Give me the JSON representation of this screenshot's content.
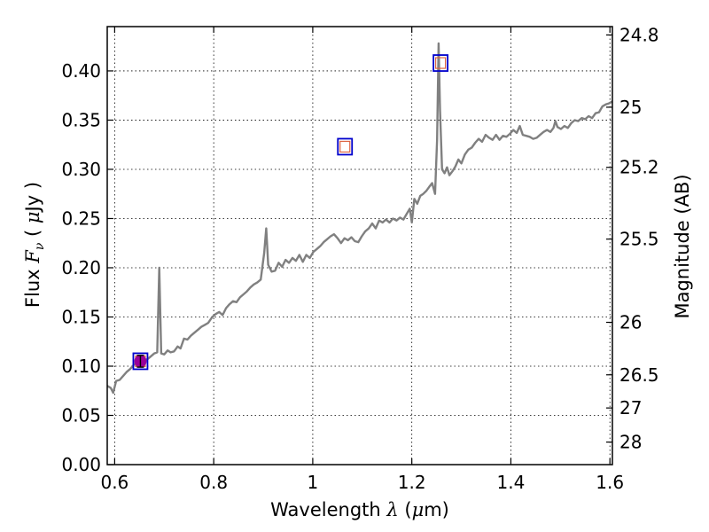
{
  "chart_data": {
    "type": "line",
    "xlabel": "Wavelength  λ (μm)",
    "ylabel": "Flux  F_ν  ( μJy )",
    "ylabel_parts": {
      "prefix": "Flux  ",
      "var": "F",
      "sub": "ν",
      "unit_open": "  ( ",
      "unit_mu": "μ",
      "unit_rest": "Jy )"
    },
    "xlabel_parts": {
      "prefix": "Wavelength  ",
      "var": "λ",
      "unit_open": " (",
      "unit_mu": "μ",
      "unit_rest": "m)"
    },
    "y2label": "Magnitude (AB)",
    "xlim": [
      0.585,
      1.605
    ],
    "ylim": [
      0.0,
      0.445
    ],
    "grid": true,
    "x_ticks": [
      {
        "value": 0.6,
        "label": "0.6"
      },
      {
        "value": 0.8,
        "label": "0.8"
      },
      {
        "value": 1.0,
        "label": "1"
      },
      {
        "value": 1.2,
        "label": "1.2"
      },
      {
        "value": 1.4,
        "label": "1.4"
      },
      {
        "value": 1.6,
        "label": "1.6"
      }
    ],
    "y_ticks": [
      {
        "value": 0.0,
        "label": "0.00"
      },
      {
        "value": 0.05,
        "label": "0.05"
      },
      {
        "value": 0.1,
        "label": "0.10"
      },
      {
        "value": 0.15,
        "label": "0.15"
      },
      {
        "value": 0.2,
        "label": "0.20"
      },
      {
        "value": 0.25,
        "label": "0.25"
      },
      {
        "value": 0.3,
        "label": "0.30"
      },
      {
        "value": 0.35,
        "label": "0.35"
      },
      {
        "value": 0.4,
        "label": "0.40"
      }
    ],
    "magnitude_ticks": [
      {
        "value": 24.8,
        "label": "24.8"
      },
      {
        "value": 25.0,
        "label": "25"
      },
      {
        "value": 25.2,
        "label": "25.2"
      },
      {
        "value": 25.5,
        "label": "25.5"
      },
      {
        "value": 26.0,
        "label": "26"
      },
      {
        "value": 26.5,
        "label": "26.5"
      },
      {
        "value": 27.0,
        "label": "27"
      },
      {
        "value": 28.0,
        "label": "28"
      }
    ],
    "series": [
      {
        "style": "spectrum",
        "color": "#808080",
        "points": [
          [
            0.585,
            0.08
          ],
          [
            0.592,
            0.078
          ],
          [
            0.597,
            0.073
          ],
          [
            0.603,
            0.085
          ],
          [
            0.61,
            0.086
          ],
          [
            0.617,
            0.09
          ],
          [
            0.624,
            0.094
          ],
          [
            0.631,
            0.097
          ],
          [
            0.638,
            0.101
          ],
          [
            0.645,
            0.104
          ],
          [
            0.652,
            0.105
          ],
          [
            0.659,
            0.106
          ],
          [
            0.666,
            0.107
          ],
          [
            0.673,
            0.11
          ],
          [
            0.68,
            0.113
          ],
          [
            0.686,
            0.114
          ],
          [
            0.69,
            0.2
          ],
          [
            0.694,
            0.113
          ],
          [
            0.7,
            0.112
          ],
          [
            0.707,
            0.116
          ],
          [
            0.713,
            0.114
          ],
          [
            0.72,
            0.115
          ],
          [
            0.727,
            0.12
          ],
          [
            0.733,
            0.118
          ],
          [
            0.74,
            0.128
          ],
          [
            0.747,
            0.127
          ],
          [
            0.754,
            0.131
          ],
          [
            0.761,
            0.134
          ],
          [
            0.768,
            0.137
          ],
          [
            0.775,
            0.14
          ],
          [
            0.782,
            0.142
          ],
          [
            0.789,
            0.144
          ],
          [
            0.797,
            0.15
          ],
          [
            0.804,
            0.153
          ],
          [
            0.811,
            0.155
          ],
          [
            0.818,
            0.152
          ],
          [
            0.825,
            0.159
          ],
          [
            0.832,
            0.163
          ],
          [
            0.839,
            0.166
          ],
          [
            0.846,
            0.165
          ],
          [
            0.853,
            0.17
          ],
          [
            0.86,
            0.173
          ],
          [
            0.867,
            0.176
          ],
          [
            0.874,
            0.18
          ],
          [
            0.881,
            0.183
          ],
          [
            0.888,
            0.185
          ],
          [
            0.895,
            0.188
          ],
          [
            0.902,
            0.215
          ],
          [
            0.906,
            0.24
          ],
          [
            0.91,
            0.203
          ],
          [
            0.917,
            0.196
          ],
          [
            0.924,
            0.197
          ],
          [
            0.931,
            0.205
          ],
          [
            0.938,
            0.201
          ],
          [
            0.945,
            0.208
          ],
          [
            0.952,
            0.205
          ],
          [
            0.959,
            0.21
          ],
          [
            0.966,
            0.207
          ],
          [
            0.973,
            0.213
          ],
          [
            0.98,
            0.206
          ],
          [
            0.987,
            0.213
          ],
          [
            0.994,
            0.21
          ],
          [
            1.001,
            0.216
          ],
          [
            1.008,
            0.219
          ],
          [
            1.015,
            0.222
          ],
          [
            1.022,
            0.226
          ],
          [
            1.029,
            0.229
          ],
          [
            1.036,
            0.232
          ],
          [
            1.043,
            0.234
          ],
          [
            1.05,
            0.23
          ],
          [
            1.057,
            0.225
          ],
          [
            1.064,
            0.23
          ],
          [
            1.071,
            0.228
          ],
          [
            1.078,
            0.231
          ],
          [
            1.085,
            0.227
          ],
          [
            1.092,
            0.226
          ],
          [
            1.099,
            0.232
          ],
          [
            1.106,
            0.237
          ],
          [
            1.113,
            0.24
          ],
          [
            1.12,
            0.245
          ],
          [
            1.127,
            0.24
          ],
          [
            1.134,
            0.248
          ],
          [
            1.141,
            0.246
          ],
          [
            1.148,
            0.249
          ],
          [
            1.155,
            0.246
          ],
          [
            1.162,
            0.25
          ],
          [
            1.169,
            0.248
          ],
          [
            1.176,
            0.251
          ],
          [
            1.183,
            0.249
          ],
          [
            1.19,
            0.255
          ],
          [
            1.196,
            0.26
          ],
          [
            1.2,
            0.246
          ],
          [
            1.205,
            0.27
          ],
          [
            1.211,
            0.265
          ],
          [
            1.217,
            0.273
          ],
          [
            1.223,
            0.275
          ],
          [
            1.229,
            0.278
          ],
          [
            1.235,
            0.282
          ],
          [
            1.241,
            0.286
          ],
          [
            1.247,
            0.275
          ],
          [
            1.251,
            0.33
          ],
          [
            1.254,
            0.428
          ],
          [
            1.257,
            0.36
          ],
          [
            1.261,
            0.3
          ],
          [
            1.266,
            0.296
          ],
          [
            1.271,
            0.302
          ],
          [
            1.276,
            0.294
          ],
          [
            1.282,
            0.298
          ],
          [
            1.288,
            0.303
          ],
          [
            1.294,
            0.31
          ],
          [
            1.3,
            0.306
          ],
          [
            1.307,
            0.315
          ],
          [
            1.314,
            0.32
          ],
          [
            1.321,
            0.322
          ],
          [
            1.328,
            0.327
          ],
          [
            1.335,
            0.331
          ],
          [
            1.342,
            0.328
          ],
          [
            1.349,
            0.335
          ],
          [
            1.356,
            0.332
          ],
          [
            1.363,
            0.33
          ],
          [
            1.37,
            0.335
          ],
          [
            1.377,
            0.33
          ],
          [
            1.384,
            0.334
          ],
          [
            1.391,
            0.333
          ],
          [
            1.398,
            0.336
          ],
          [
            1.405,
            0.34
          ],
          [
            1.412,
            0.337
          ],
          [
            1.418,
            0.344
          ],
          [
            1.424,
            0.335
          ],
          [
            1.431,
            0.334
          ],
          [
            1.438,
            0.333
          ],
          [
            1.445,
            0.331
          ],
          [
            1.452,
            0.332
          ],
          [
            1.459,
            0.335
          ],
          [
            1.466,
            0.338
          ],
          [
            1.473,
            0.34
          ],
          [
            1.48,
            0.338
          ],
          [
            1.486,
            0.342
          ],
          [
            1.49,
            0.349
          ],
          [
            1.494,
            0.343
          ],
          [
            1.501,
            0.341
          ],
          [
            1.508,
            0.344
          ],
          [
            1.515,
            0.342
          ],
          [
            1.522,
            0.347
          ],
          [
            1.529,
            0.35
          ],
          [
            1.536,
            0.349
          ],
          [
            1.543,
            0.352
          ],
          [
            1.55,
            0.351
          ],
          [
            1.557,
            0.354
          ],
          [
            1.564,
            0.352
          ],
          [
            1.571,
            0.357
          ],
          [
            1.578,
            0.358
          ],
          [
            1.585,
            0.364
          ],
          [
            1.592,
            0.366
          ],
          [
            1.598,
            0.367
          ],
          [
            1.605,
            0.369
          ]
        ]
      },
      {
        "style": "photometry-model",
        "marker": "square",
        "color": "#0000cc",
        "x": [
          0.652,
          1.065,
          1.258
        ],
        "y": [
          0.105,
          0.323,
          0.408
        ]
      },
      {
        "style": "photometry-observed",
        "marker": "square",
        "color": "#dd6644",
        "x": [
          0.652,
          1.065,
          1.258
        ],
        "y": [
          0.105,
          0.323,
          0.408
        ]
      },
      {
        "style": "photometry-detection",
        "marker": "circle",
        "color": "#990099",
        "x": [
          0.652
        ],
        "y": [
          0.105
        ],
        "yerr": [
          0.006
        ]
      }
    ]
  }
}
